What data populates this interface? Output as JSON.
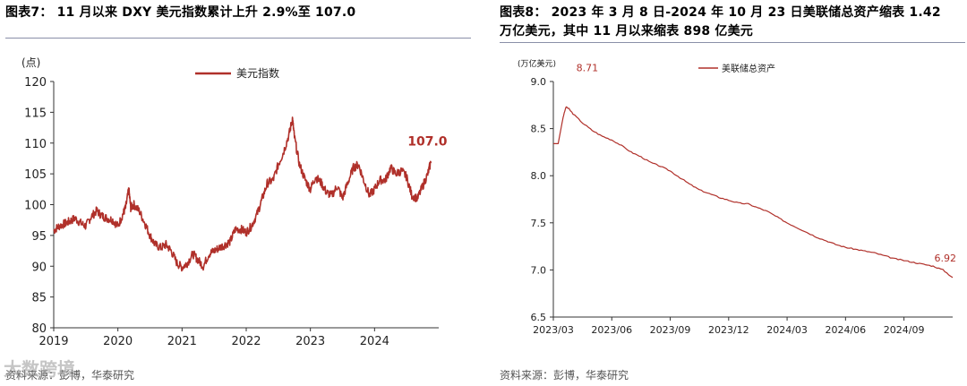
{
  "charts": [
    {
      "figure_title": "图表7：  11 月以来 DXY 美元指数累计上升 2.9%至 107.0",
      "source": "资料来源：彭博，华泰研究",
      "color": "#b0302a"
    },
    {
      "figure_title_line1": "图表8：  2023 年 3 月 8 日-2024 年 10 月 23 日美联储总资产缩表 1.42",
      "figure_title_line2": "万亿美元，其中 11 月以来缩表 898 亿美元",
      "source": "资料来源：彭博，华泰研究",
      "color": "#b0302a"
    }
  ],
  "watermark": "大数跨境",
  "chart_data": [
    {
      "type": "line",
      "title": "",
      "unit_label": "(点)",
      "legend": "美元指数",
      "legend_position": "top-center",
      "ylim": [
        80,
        120
      ],
      "yticks": [
        "80",
        "85",
        "90",
        "95",
        "100",
        "105",
        "110",
        "115",
        "120"
      ],
      "xticks": [
        "2019",
        "2020",
        "2021",
        "2022",
        "2023",
        "2024"
      ],
      "xlim": [
        2019.0,
        2025.0
      ],
      "end_label": "107.0",
      "series": [
        {
          "name": "美元指数",
          "x": [
            2019.0,
            2019.08,
            2019.17,
            2019.25,
            2019.33,
            2019.42,
            2019.5,
            2019.58,
            2019.67,
            2019.75,
            2019.83,
            2019.92,
            2020.0,
            2020.08,
            2020.12,
            2020.17,
            2020.2,
            2020.25,
            2020.33,
            2020.42,
            2020.5,
            2020.58,
            2020.67,
            2020.75,
            2020.83,
            2020.92,
            2021.0,
            2021.08,
            2021.17,
            2021.25,
            2021.33,
            2021.42,
            2021.5,
            2021.58,
            2021.67,
            2021.75,
            2021.83,
            2021.92,
            2022.0,
            2022.08,
            2022.17,
            2022.25,
            2022.33,
            2022.42,
            2022.5,
            2022.58,
            2022.67,
            2022.72,
            2022.75,
            2022.83,
            2022.92,
            2023.0,
            2023.08,
            2023.17,
            2023.25,
            2023.33,
            2023.42,
            2023.5,
            2023.58,
            2023.67,
            2023.75,
            2023.83,
            2023.92,
            2024.0,
            2024.08,
            2024.17,
            2024.25,
            2024.33,
            2024.42,
            2024.5,
            2024.58,
            2024.67,
            2024.75,
            2024.83,
            2024.88
          ],
          "y": [
            95.8,
            96.5,
            96.9,
            97.3,
            97.8,
            97.0,
            96.5,
            98.0,
            99.0,
            98.2,
            97.8,
            97.5,
            96.5,
            98.5,
            99.5,
            102.5,
            99.5,
            100.0,
            99.0,
            97.0,
            95.0,
            93.5,
            93.0,
            93.5,
            92.5,
            90.5,
            89.8,
            90.5,
            92.0,
            91.0,
            90.0,
            92.0,
            92.5,
            93.0,
            93.5,
            94.0,
            96.0,
            96.0,
            95.5,
            96.5,
            98.5,
            101.0,
            103.5,
            104.0,
            106.5,
            108.5,
            111.5,
            114.0,
            111.0,
            106.5,
            104.0,
            102.5,
            104.5,
            103.5,
            102.0,
            101.5,
            103.0,
            101.0,
            103.5,
            106.0,
            106.5,
            104.0,
            101.5,
            102.5,
            104.0,
            104.0,
            106.0,
            105.0,
            105.5,
            104.5,
            101.5,
            101.0,
            103.0,
            105.0,
            107.0
          ]
        }
      ]
    },
    {
      "type": "line",
      "title": "",
      "unit_label": "(万亿美元)",
      "legend": "美联储总资产",
      "legend_position": "top-center",
      "ylim": [
        6.5,
        9.0
      ],
      "yticks": [
        "6.5",
        "7.0",
        "7.5",
        "8.0",
        "8.5",
        "9.0"
      ],
      "xticks": [
        "2023/03",
        "2023/06",
        "2023/09",
        "2023/12",
        "2024/03",
        "2024/06",
        "2024/09"
      ],
      "xlim": [
        0,
        20.5
      ],
      "start_label": "8.71",
      "end_label": "6.92",
      "series": [
        {
          "name": "美联储总资产",
          "x": [
            0.0,
            0.25,
            0.5,
            0.65,
            0.8,
            1.0,
            1.5,
            2.0,
            2.5,
            3.0,
            3.5,
            4.0,
            4.5,
            5.0,
            5.5,
            6.0,
            6.5,
            7.0,
            7.5,
            8.0,
            8.5,
            9.0,
            9.5,
            10.0,
            10.5,
            11.0,
            11.5,
            12.0,
            12.5,
            13.0,
            13.5,
            14.0,
            14.5,
            15.0,
            15.5,
            16.0,
            16.5,
            17.0,
            17.5,
            18.0,
            18.5,
            19.0,
            19.5,
            20.0,
            20.5
          ],
          "y": [
            8.34,
            8.34,
            8.62,
            8.73,
            8.71,
            8.66,
            8.56,
            8.48,
            8.42,
            8.38,
            8.32,
            8.25,
            8.2,
            8.14,
            8.1,
            8.05,
            7.98,
            7.91,
            7.85,
            7.81,
            7.77,
            7.74,
            7.71,
            7.7,
            7.66,
            7.62,
            7.56,
            7.5,
            7.45,
            7.4,
            7.35,
            7.31,
            7.27,
            7.24,
            7.22,
            7.2,
            7.18,
            7.15,
            7.12,
            7.1,
            7.08,
            7.06,
            7.04,
            7.0,
            6.92
          ]
        }
      ]
    }
  ]
}
